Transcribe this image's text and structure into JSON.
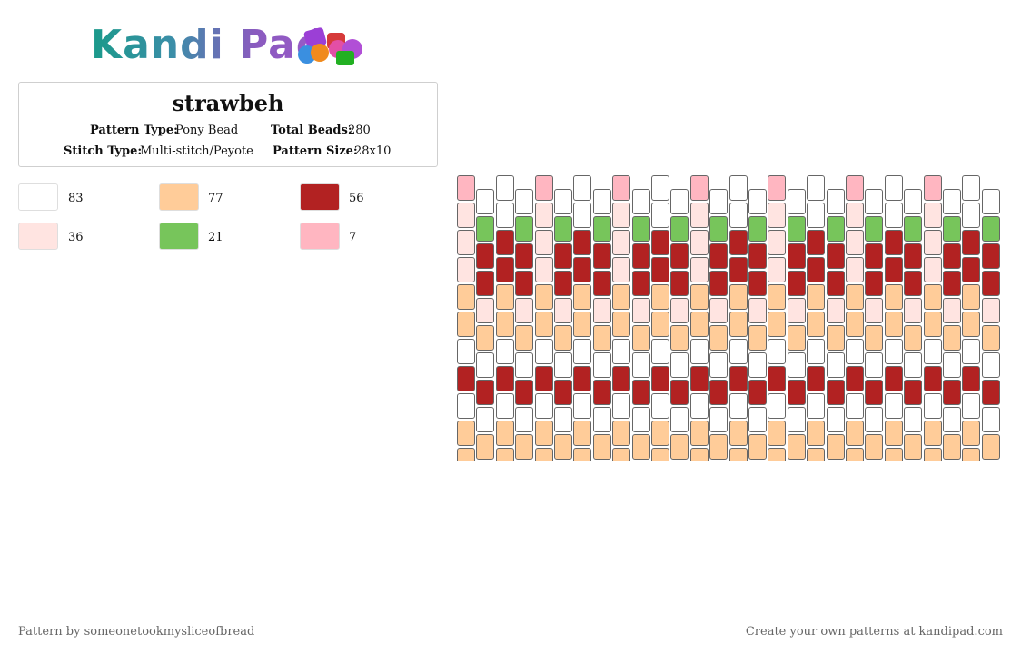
{
  "logo": {
    "text": "Kandi Pad"
  },
  "pattern": {
    "title": "strawbeh",
    "type_label": "Pattern Type:",
    "type_value": "Pony Bead",
    "beads_label": "Total Beads:",
    "beads_value": "280",
    "stitch_label": "Stitch Type:",
    "stitch_value": "Multi-stitch/Peyote",
    "size_label": "Pattern Size:",
    "size_value": "28x10"
  },
  "colors": [
    {
      "id": "white",
      "hex": "#FFFFFF",
      "count": "83"
    },
    {
      "id": "peach",
      "hex": "#FFCC99",
      "count": "77"
    },
    {
      "id": "red",
      "hex": "#B22222",
      "count": "56"
    },
    {
      "id": "blush",
      "hex": "#FFE4E1",
      "count": "36"
    },
    {
      "id": "green",
      "hex": "#77C55B",
      "count": "21"
    },
    {
      "id": "pink",
      "hex": "#FFB6C1",
      "count": "7"
    }
  ],
  "footer": {
    "left": "Pattern by someonetookmysliceofbread",
    "right": "Create your own patterns at kandipad.com"
  }
}
